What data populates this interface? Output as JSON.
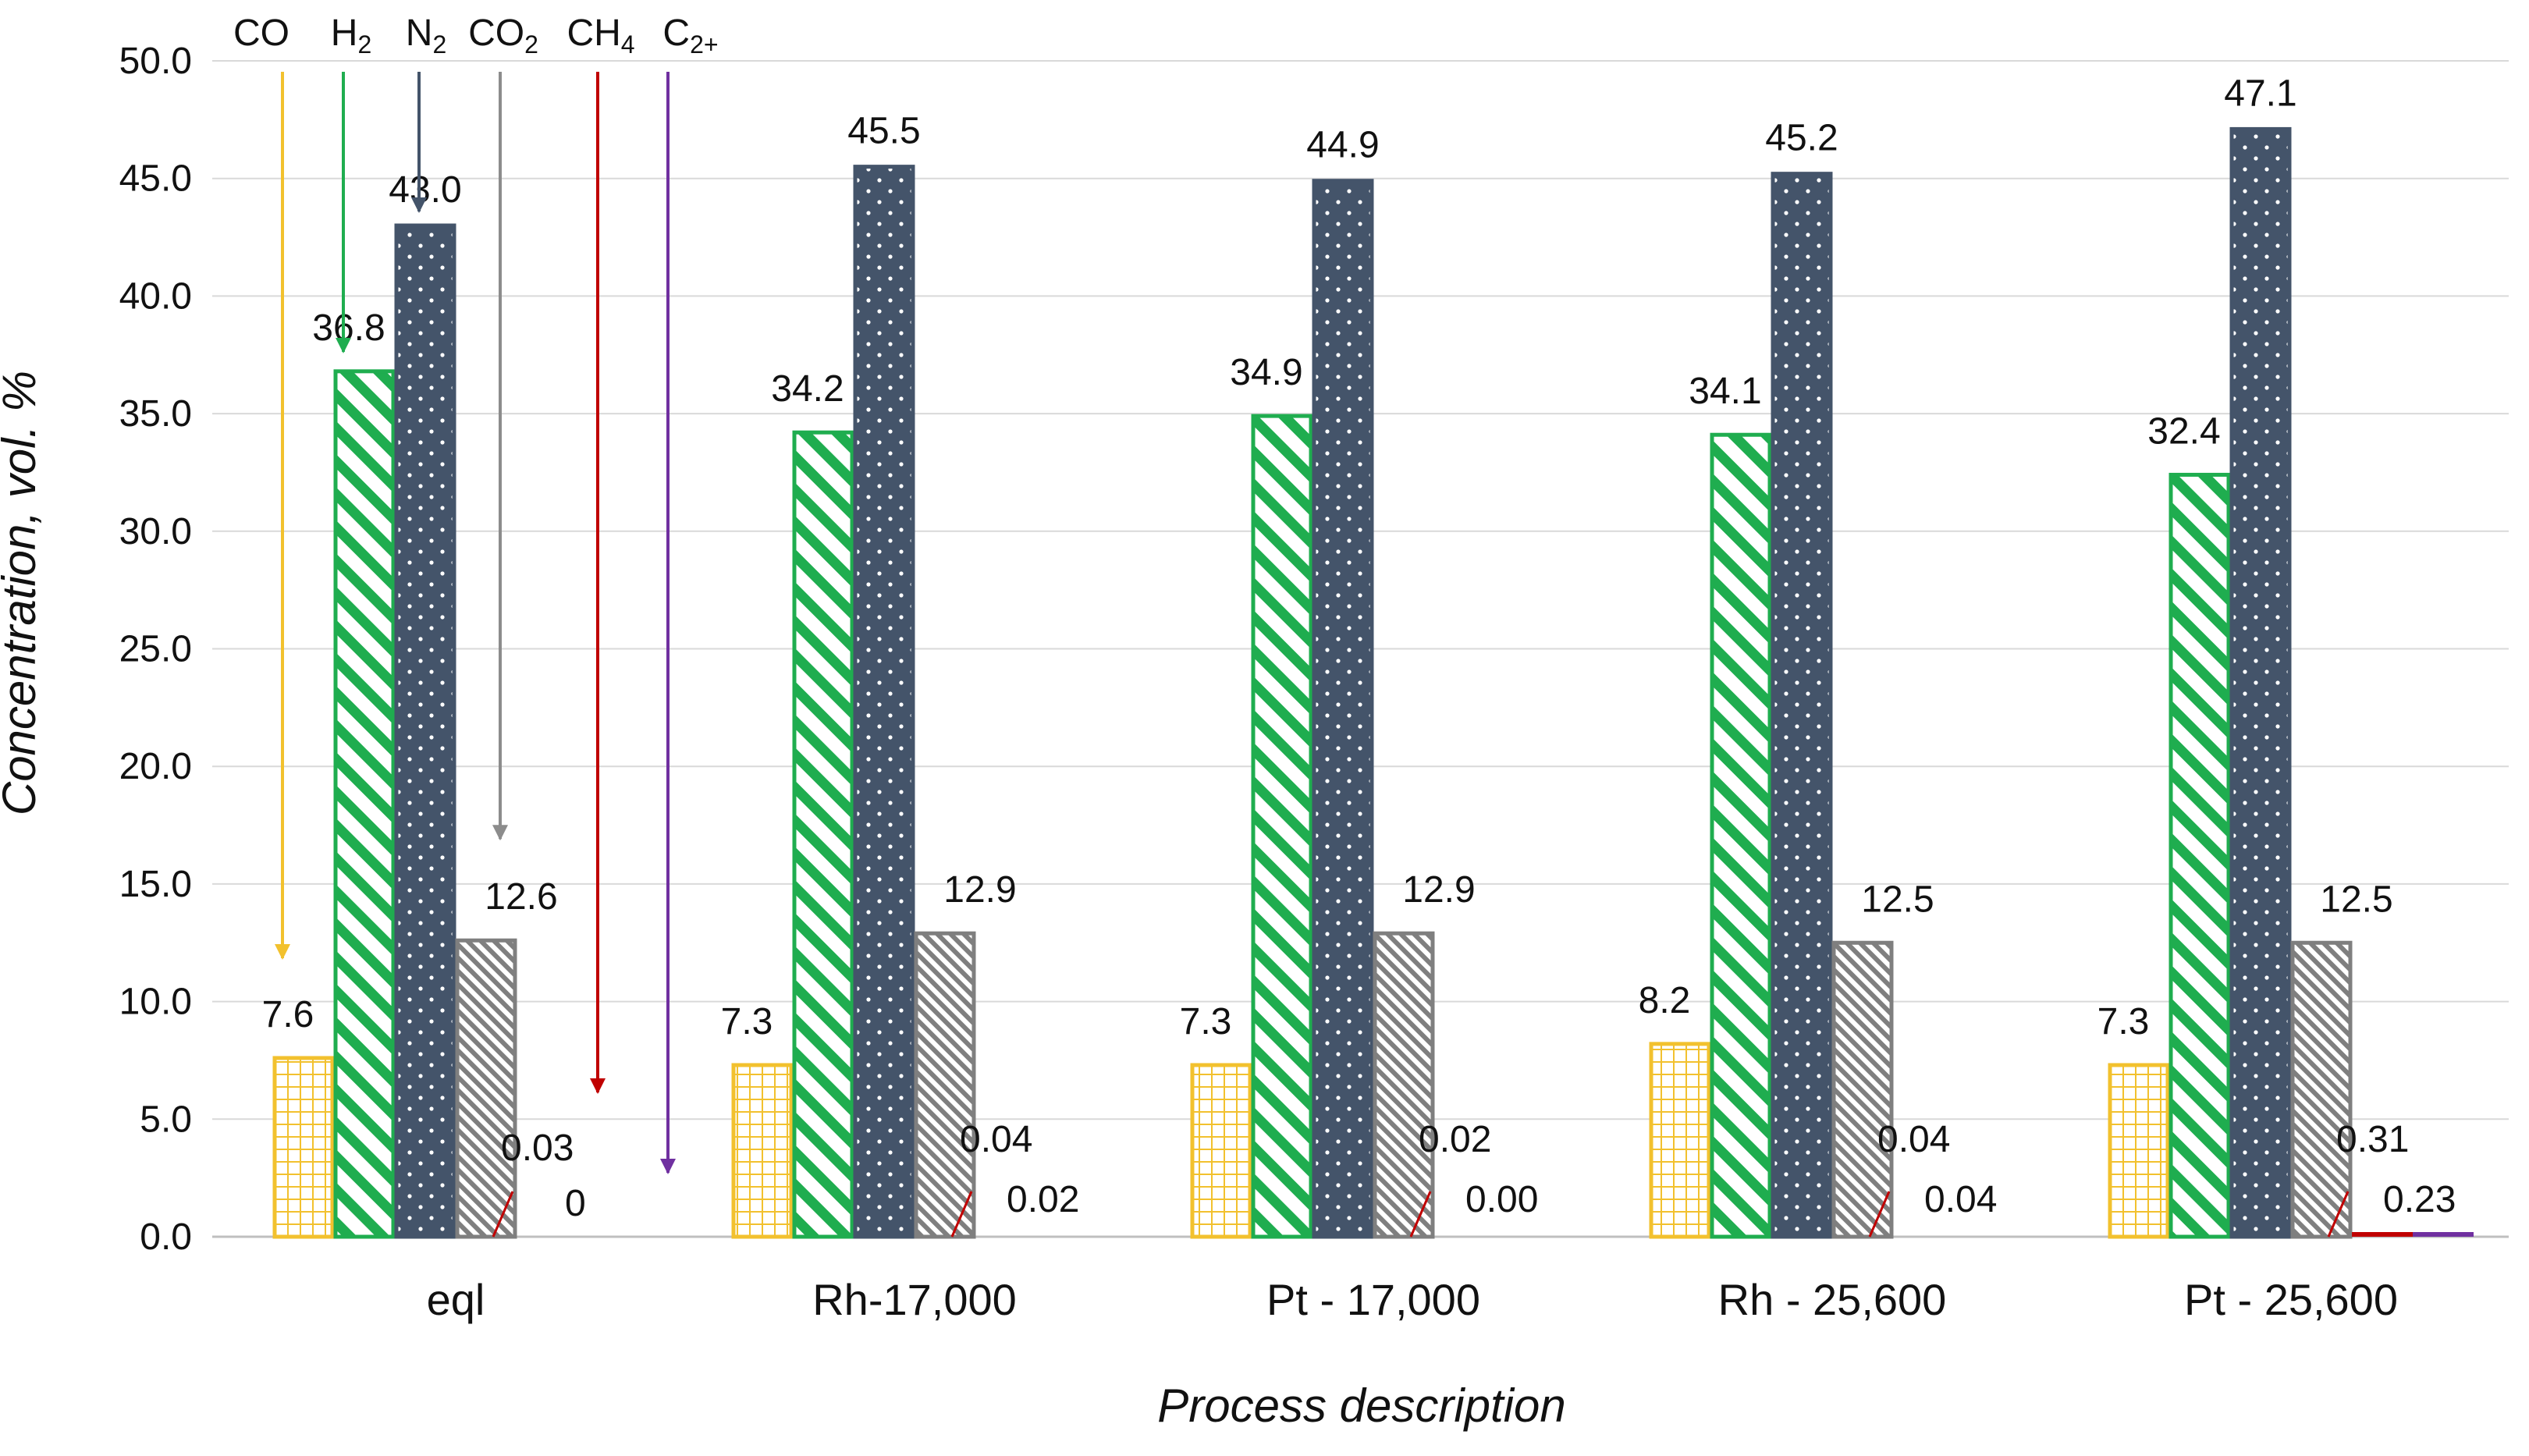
{
  "chart_data": {
    "type": "bar",
    "title": "",
    "xlabel": "Process description",
    "ylabel": "Concentration, vol. %",
    "ylim": [
      0,
      50
    ],
    "ytick_step": 5,
    "ytick_labels": [
      "0.0",
      "5.0",
      "10.0",
      "15.0",
      "20.0",
      "25.0",
      "30.0",
      "35.0",
      "40.0",
      "45.0",
      "50.0"
    ],
    "grid": true,
    "legend_placement": "top-left (labels with arrows pointing to eql bars)",
    "categories": [
      "eql",
      "Rh-17,000",
      "Pt - 17,000",
      "Rh - 25,600",
      "Pt - 25,600"
    ],
    "series": [
      {
        "name": "CO",
        "base": "CO",
        "sub": "",
        "color": "#f2c12e",
        "pattern": "grid",
        "values": [
          7.6,
          7.3,
          7.3,
          8.2,
          7.3
        ],
        "labels": [
          "7.6",
          "7.3",
          "7.3",
          "8.2",
          "7.3"
        ]
      },
      {
        "name": "H2",
        "base": "H",
        "sub": "2",
        "color": "#1fad4f",
        "pattern": "diag",
        "values": [
          36.8,
          34.2,
          34.9,
          34.1,
          32.4
        ],
        "labels": [
          "36.8",
          "34.2",
          "34.9",
          "34.1",
          "32.4"
        ]
      },
      {
        "name": "N2",
        "base": "N",
        "sub": "2",
        "color": "#44546a",
        "pattern": "dots",
        "values": [
          43.0,
          45.5,
          44.9,
          45.2,
          47.1
        ],
        "labels": [
          "43.0",
          "45.5",
          "44.9",
          "45.2",
          "47.1"
        ]
      },
      {
        "name": "CO2",
        "base": "CO",
        "sub": "2",
        "color": "#8c8c8c",
        "pattern": "fine-diag",
        "values": [
          12.6,
          12.9,
          12.9,
          12.5,
          12.5
        ],
        "labels": [
          "12.6",
          "12.9",
          "12.9",
          "12.5",
          "12.5"
        ]
      },
      {
        "name": "CH4",
        "base": "CH",
        "sub": "4",
        "color": "#c00000",
        "pattern": "solid",
        "values": [
          0.03,
          0.04,
          0.02,
          0.04,
          0.31
        ],
        "labels": [
          "0.03",
          "0.04",
          "0.02",
          "0.04",
          "0.31"
        ]
      },
      {
        "name": "C2+",
        "base": "C",
        "sub": "2+",
        "color": "#7030a0",
        "pattern": "solid",
        "values": [
          0,
          0.02,
          0.0,
          0.04,
          0.23
        ],
        "labels": [
          "0",
          "0.02",
          "0.00",
          "0.04",
          "0.23"
        ]
      }
    ]
  }
}
